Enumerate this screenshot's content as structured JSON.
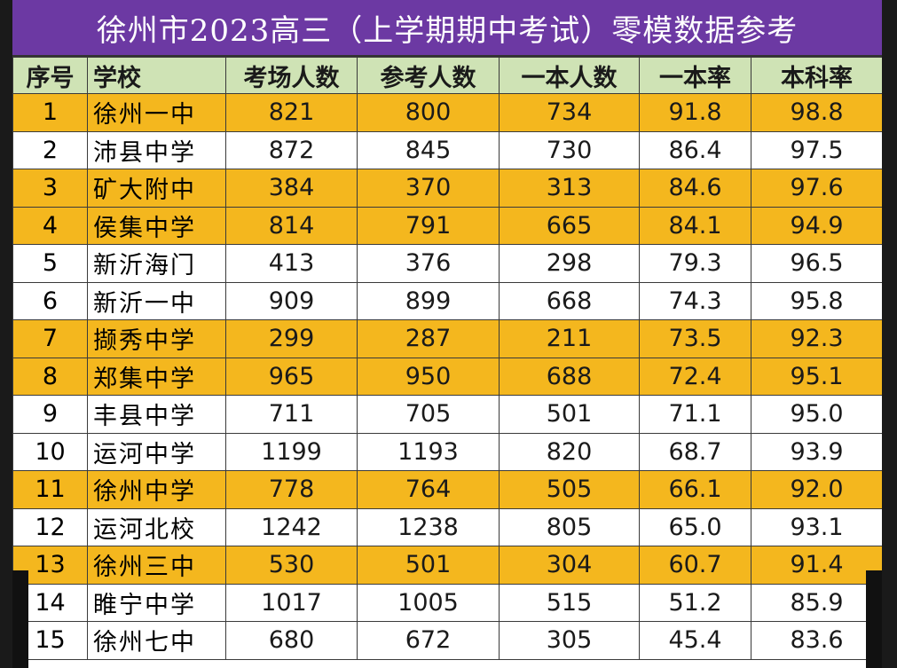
{
  "title": "徐州市2023高三（上学期期中考试）零模数据参考",
  "columns": [
    "序号",
    "学校",
    "考场人数",
    "参考人数",
    "一本人数",
    "一本率",
    "本科率"
  ],
  "rows": [
    {
      "no": "1",
      "school": "徐州一中",
      "exam": "821",
      "takers": "800",
      "tier1": "734",
      "tier1_rate": "91.8",
      "bachelor_rate": "98.8",
      "highlight": true
    },
    {
      "no": "2",
      "school": "沛县中学",
      "exam": "872",
      "takers": "845",
      "tier1": "730",
      "tier1_rate": "86.4",
      "bachelor_rate": "97.5",
      "highlight": false
    },
    {
      "no": "3",
      "school": "矿大附中",
      "exam": "384",
      "takers": "370",
      "tier1": "313",
      "tier1_rate": "84.6",
      "bachelor_rate": "97.6",
      "highlight": true
    },
    {
      "no": "4",
      "school": "侯集中学",
      "exam": "814",
      "takers": "791",
      "tier1": "665",
      "tier1_rate": "84.1",
      "bachelor_rate": "94.9",
      "highlight": true
    },
    {
      "no": "5",
      "school": "新沂海门",
      "exam": "413",
      "takers": "376",
      "tier1": "298",
      "tier1_rate": "79.3",
      "bachelor_rate": "96.5",
      "highlight": false
    },
    {
      "no": "6",
      "school": "新沂一中",
      "exam": "909",
      "takers": "899",
      "tier1": "668",
      "tier1_rate": "74.3",
      "bachelor_rate": "95.8",
      "highlight": false
    },
    {
      "no": "7",
      "school": "撷秀中学",
      "exam": "299",
      "takers": "287",
      "tier1": "211",
      "tier1_rate": "73.5",
      "bachelor_rate": "92.3",
      "highlight": true
    },
    {
      "no": "8",
      "school": "郑集中学",
      "exam": "965",
      "takers": "950",
      "tier1": "688",
      "tier1_rate": "72.4",
      "bachelor_rate": "95.1",
      "highlight": true
    },
    {
      "no": "9",
      "school": "丰县中学",
      "exam": "711",
      "takers": "705",
      "tier1": "501",
      "tier1_rate": "71.1",
      "bachelor_rate": "95.0",
      "highlight": false
    },
    {
      "no": "10",
      "school": "运河中学",
      "exam": "1199",
      "takers": "1193",
      "tier1": "820",
      "tier1_rate": "68.7",
      "bachelor_rate": "93.9",
      "highlight": false
    },
    {
      "no": "11",
      "school": "徐州中学",
      "exam": "778",
      "takers": "764",
      "tier1": "505",
      "tier1_rate": "66.1",
      "bachelor_rate": "92.0",
      "highlight": true
    },
    {
      "no": "12",
      "school": "运河北校",
      "exam": "1242",
      "takers": "1238",
      "tier1": "805",
      "tier1_rate": "65.0",
      "bachelor_rate": "93.1",
      "highlight": false
    },
    {
      "no": "13",
      "school": "徐州三中",
      "exam": "530",
      "takers": "501",
      "tier1": "304",
      "tier1_rate": "60.7",
      "bachelor_rate": "91.4",
      "highlight": true
    },
    {
      "no": "14",
      "school": "睢宁中学",
      "exam": "1017",
      "takers": "1005",
      "tier1": "515",
      "tier1_rate": "51.2",
      "bachelor_rate": "85.9",
      "highlight": false
    },
    {
      "no": "15",
      "school": "徐州七中",
      "exam": "680",
      "takers": "672",
      "tier1": "305",
      "tier1_rate": "45.4",
      "bachelor_rate": "83.6",
      "highlight": false
    }
  ],
  "colors": {
    "title_bg": "#6c39a3",
    "header_bg": "#cfe3b5",
    "highlight_row": "#f4b71e"
  }
}
